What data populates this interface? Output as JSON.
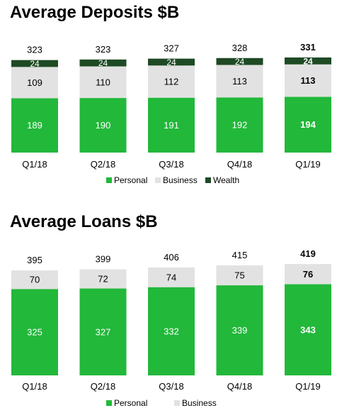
{
  "chart_data": [
    {
      "type": "bar",
      "stacked": true,
      "title": "Average Deposits $B",
      "categories": [
        "Q1/18",
        "Q2/18",
        "Q3/18",
        "Q4/18",
        "Q1/19"
      ],
      "series": [
        {
          "name": "Personal",
          "values": [
            189,
            190,
            191,
            192,
            194
          ]
        },
        {
          "name": "Business",
          "values": [
            109,
            110,
            112,
            113,
            113
          ]
        },
        {
          "name": "Wealth",
          "values": [
            24,
            24,
            24,
            24,
            24
          ]
        }
      ],
      "totals": [
        323,
        323,
        327,
        328,
        331
      ],
      "highlight_category": "Q1/19",
      "legend_position": "bottom",
      "grid": false
    },
    {
      "type": "bar",
      "stacked": true,
      "title": "Average Loans $B",
      "categories": [
        "Q1/18",
        "Q2/18",
        "Q3/18",
        "Q4/18",
        "Q1/19"
      ],
      "series": [
        {
          "name": "Personal",
          "values": [
            325,
            327,
            332,
            339,
            343
          ]
        },
        {
          "name": "Business",
          "values": [
            70,
            72,
            74,
            75,
            76
          ]
        }
      ],
      "totals": [
        395,
        399,
        406,
        415,
        419
      ],
      "highlight_category": "Q1/19",
      "legend_position": "bottom",
      "grid": false
    }
  ],
  "colors": {
    "Personal": "#22b83a",
    "Business": "#e2e2e2",
    "Wealth": "#1e4a24"
  }
}
